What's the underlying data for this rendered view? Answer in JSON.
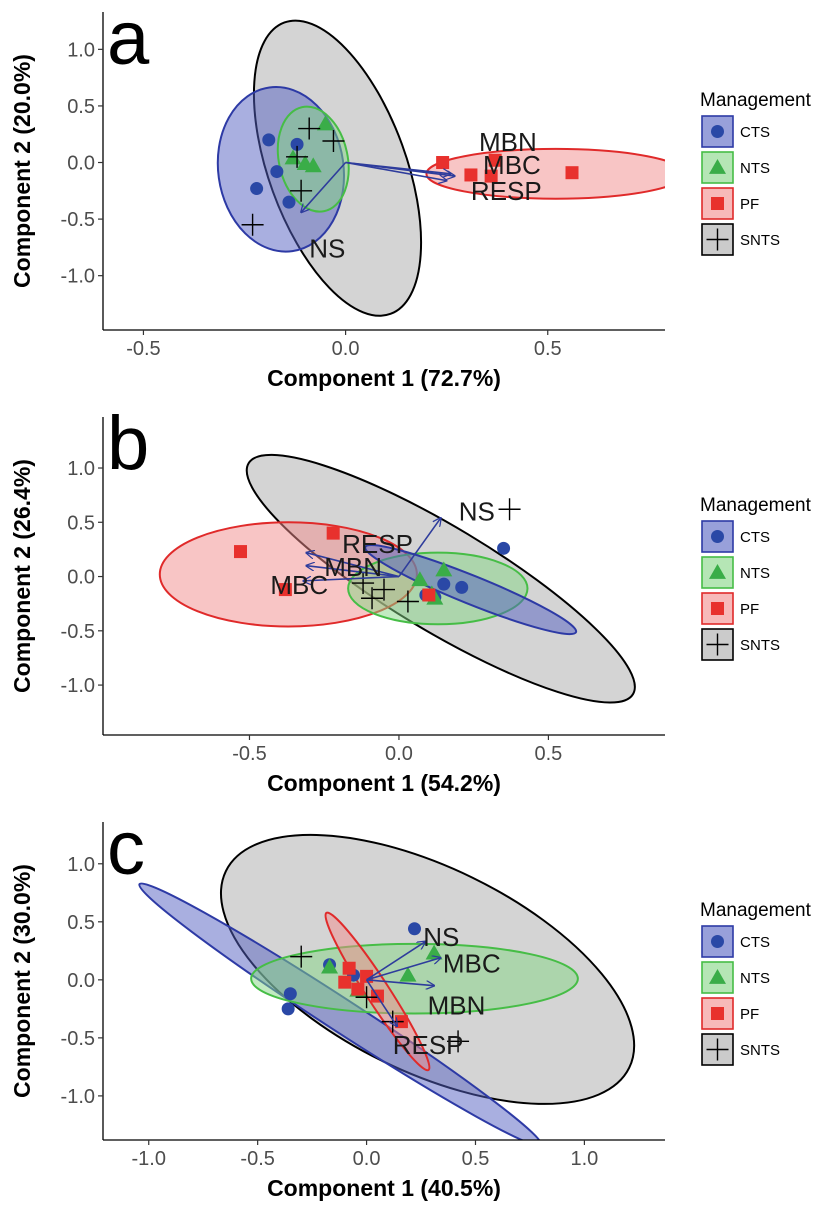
{
  "legend": {
    "title": "Management",
    "entries": [
      {
        "key": "CTS",
        "label": "CTS",
        "fill": "#5360c2",
        "stroke": "#2d3aa5",
        "point": "#2a48a6",
        "shape": "circle"
      },
      {
        "key": "NTS",
        "label": "NTS",
        "fill": "#84d684",
        "stroke": "#46bd46",
        "point": "#3aad48",
        "shape": "triangle"
      },
      {
        "key": "PF",
        "label": "PF",
        "fill": "#f28b8b",
        "stroke": "#e02a2a",
        "point": "#e8312d",
        "shape": "square"
      },
      {
        "key": "SNTS",
        "label": "SNTS",
        "fill": "#a9a9a9",
        "stroke": "#000000",
        "point": "#000000",
        "shape": "cross"
      }
    ]
  },
  "colors": {
    "arrow": "#2e3c9c",
    "axis": "#000000",
    "tick_text": "#4d4d4d"
  },
  "chart_data": [
    {
      "type": "scatter",
      "panel_label": "a",
      "xlabel": "Component 1 (72.7%)",
      "ylabel": "Component 2 (20.0%)",
      "xlim": [
        -0.6,
        0.79
      ],
      "ylim": [
        -1.48,
        1.33
      ],
      "xticks": [
        -0.5,
        0.0,
        0.5
      ],
      "xtick_labels": [
        "-0.5",
        "0.0",
        "0.5"
      ],
      "yticks": [
        -1.0,
        -0.5,
        0.0,
        0.5,
        1.0
      ],
      "ytick_labels": [
        "-1.0",
        "-0.5",
        "0.0",
        "0.5",
        "1.0"
      ],
      "ellipses": [
        {
          "group": "SNTS",
          "cx": -0.02,
          "cy": -0.05,
          "rx": 0.17,
          "ry": 1.37,
          "angle": 20
        },
        {
          "group": "CTS",
          "cx": -0.16,
          "cy": -0.06,
          "rx": 0.155,
          "ry": 0.73,
          "angle": 8
        },
        {
          "group": "PF",
          "cx": 0.52,
          "cy": -0.1,
          "rx": 0.32,
          "ry": 0.22,
          "angle": 0
        },
        {
          "group": "NTS",
          "cx": -0.08,
          "cy": 0.03,
          "rx": 0.085,
          "ry": 0.47,
          "angle": 12
        }
      ],
      "points": [
        {
          "group": "CTS",
          "x": -0.19,
          "y": 0.2
        },
        {
          "group": "CTS",
          "x": -0.12,
          "y": 0.16
        },
        {
          "group": "CTS",
          "x": -0.17,
          "y": -0.08
        },
        {
          "group": "CTS",
          "x": -0.22,
          "y": -0.23
        },
        {
          "group": "CTS",
          "x": -0.14,
          "y": -0.35
        },
        {
          "group": "NTS",
          "x": -0.05,
          "y": 0.34
        },
        {
          "group": "NTS",
          "x": -0.13,
          "y": 0.04
        },
        {
          "group": "NTS",
          "x": -0.1,
          "y": -0.01
        },
        {
          "group": "NTS",
          "x": -0.08,
          "y": -0.03
        },
        {
          "group": "PF",
          "x": 0.24,
          "y": 0.0
        },
        {
          "group": "PF",
          "x": 0.31,
          "y": -0.11
        },
        {
          "group": "PF",
          "x": 0.37,
          "y": 0.02
        },
        {
          "group": "PF",
          "x": 0.36,
          "y": -0.12
        },
        {
          "group": "PF",
          "x": 0.56,
          "y": -0.09
        },
        {
          "group": "SNTS",
          "x": -0.09,
          "y": 0.3
        },
        {
          "group": "SNTS",
          "x": -0.12,
          "y": 0.05
        },
        {
          "group": "SNTS",
          "x": -0.03,
          "y": 0.19
        },
        {
          "group": "SNTS",
          "x": -0.11,
          "y": -0.25
        },
        {
          "group": "SNTS",
          "x": -0.23,
          "y": -0.55
        }
      ],
      "arrows": [
        {
          "label": "MBN",
          "x": 0.26,
          "y": -0.1,
          "label_x": 0.33,
          "label_y": 0.18
        },
        {
          "label": "MBC",
          "x": 0.27,
          "y": -0.12,
          "label_x": 0.34,
          "label_y": -0.02
        },
        {
          "label": "RESP",
          "x": 0.25,
          "y": -0.16,
          "label_x": 0.31,
          "label_y": -0.25
        },
        {
          "label": "NS",
          "x": -0.11,
          "y": -0.44,
          "label_x": -0.09,
          "label_y": -0.76
        }
      ]
    },
    {
      "type": "scatter",
      "panel_label": "b",
      "xlabel": "Component 1 (54.2%)",
      "ylabel": "Component 2 (26.4%)",
      "xlim": [
        -0.99,
        0.89
      ],
      "ylim": [
        -1.46,
        1.47
      ],
      "xticks": [
        -0.5,
        0.0,
        0.5
      ],
      "xtick_labels": [
        "-0.5",
        "0.0",
        "0.5"
      ],
      "yticks": [
        -1.0,
        -0.5,
        0.0,
        0.5,
        1.0
      ],
      "ytick_labels": [
        "-1.0",
        "-0.5",
        "0.0",
        "0.5",
        "1.0"
      ],
      "ellipses": [
        {
          "group": "SNTS",
          "cx": 0.14,
          "cy": -0.02,
          "rx": 0.75,
          "ry": 0.48,
          "angle": -31
        },
        {
          "group": "PF",
          "cx": -0.37,
          "cy": 0.02,
          "rx": 0.43,
          "ry": 0.48,
          "angle": 0
        },
        {
          "group": "NTS",
          "cx": 0.13,
          "cy": -0.11,
          "rx": 0.3,
          "ry": 0.33,
          "angle": 0
        },
        {
          "group": "CTS",
          "cx": 0.24,
          "cy": -0.12,
          "rx": 0.38,
          "ry": 0.13,
          "angle": -22
        }
      ],
      "points": [
        {
          "group": "CTS",
          "x": 0.35,
          "y": 0.26
        },
        {
          "group": "CTS",
          "x": 0.15,
          "y": -0.07
        },
        {
          "group": "CTS",
          "x": 0.21,
          "y": -0.1
        },
        {
          "group": "CTS",
          "x": 0.09,
          "y": -0.17
        },
        {
          "group": "CTS",
          "x": 0.12,
          "y": -0.19
        },
        {
          "group": "NTS",
          "x": 0.07,
          "y": -0.03
        },
        {
          "group": "NTS",
          "x": 0.11,
          "y": -0.16
        },
        {
          "group": "NTS",
          "x": 0.12,
          "y": -0.2
        },
        {
          "group": "NTS",
          "x": 0.15,
          "y": 0.06
        },
        {
          "group": "PF",
          "x": -0.53,
          "y": 0.23
        },
        {
          "group": "PF",
          "x": -0.22,
          "y": 0.4
        },
        {
          "group": "PF",
          "x": -0.38,
          "y": -0.12
        },
        {
          "group": "PF",
          "x": 0.1,
          "y": -0.17
        },
        {
          "group": "SNTS",
          "x": 0.37,
          "y": 0.62
        },
        {
          "group": "SNTS",
          "x": -0.12,
          "y": -0.06
        },
        {
          "group": "SNTS",
          "x": -0.09,
          "y": -0.2
        },
        {
          "group": "SNTS",
          "x": 0.03,
          "y": -0.23
        },
        {
          "group": "SNTS",
          "x": -0.05,
          "y": -0.12
        }
      ],
      "arrows": [
        {
          "label": "NS",
          "x": 0.14,
          "y": 0.54,
          "label_x": 0.2,
          "label_y": 0.6
        },
        {
          "label": "RESP",
          "x": -0.31,
          "y": 0.22,
          "label_x": -0.19,
          "label_y": 0.3
        },
        {
          "label": "MBN",
          "x": -0.31,
          "y": 0.1,
          "label_x": -0.25,
          "label_y": 0.09
        },
        {
          "label": "MBC",
          "x": -0.32,
          "y": -0.04,
          "label_x": -0.43,
          "label_y": -0.08
        }
      ]
    },
    {
      "type": "scatter",
      "panel_label": "c",
      "xlabel": "Component 1 (40.5%)",
      "ylabel": "Component 2 (30.0%)",
      "xlim": [
        -1.21,
        1.37
      ],
      "ylim": [
        -1.38,
        1.36
      ],
      "xticks": [
        -1.0,
        -0.5,
        0.0,
        0.5,
        1.0
      ],
      "xtick_labels": [
        "-1.0",
        "-0.5",
        "0.0",
        "0.5",
        "1.0"
      ],
      "yticks": [
        -1.0,
        -0.5,
        0.0,
        0.5,
        1.0
      ],
      "ytick_labels": [
        "-1.0",
        "-0.5",
        "0.0",
        "0.5",
        "1.0"
      ],
      "ellipses": [
        {
          "group": "SNTS",
          "cx": 0.28,
          "cy": 0.09,
          "rx": 1.03,
          "ry": 0.88,
          "angle": -26
        },
        {
          "group": "CTS",
          "cx": -0.12,
          "cy": -0.3,
          "rx": 1.1,
          "ry": 0.14,
          "angle": -33
        },
        {
          "group": "NTS",
          "cx": 0.22,
          "cy": 0.01,
          "rx": 0.75,
          "ry": 0.3,
          "angle": 0
        },
        {
          "group": "PF",
          "cx": 0.05,
          "cy": -0.1,
          "rx": 0.43,
          "ry": 0.1,
          "angle": -57
        }
      ],
      "points": [
        {
          "group": "CTS",
          "x": 0.22,
          "y": 0.44
        },
        {
          "group": "CTS",
          "x": -0.17,
          "y": 0.13
        },
        {
          "group": "CTS",
          "x": -0.06,
          "y": 0.04
        },
        {
          "group": "CTS",
          "x": -0.35,
          "y": -0.12
        },
        {
          "group": "CTS",
          "x": -0.36,
          "y": -0.25
        },
        {
          "group": "NTS",
          "x": 0.31,
          "y": 0.23
        },
        {
          "group": "NTS",
          "x": 0.19,
          "y": 0.04
        },
        {
          "group": "NTS",
          "x": -0.17,
          "y": 0.11
        },
        {
          "group": "NTS",
          "x": -0.04,
          "y": -0.09
        },
        {
          "group": "PF",
          "x": -0.08,
          "y": 0.1
        },
        {
          "group": "PF",
          "x": -0.1,
          "y": -0.02
        },
        {
          "group": "PF",
          "x": 0.0,
          "y": 0.03
        },
        {
          "group": "PF",
          "x": 0.05,
          "y": -0.14
        },
        {
          "group": "PF",
          "x": 0.16,
          "y": -0.36
        },
        {
          "group": "PF",
          "x": -0.04,
          "y": -0.08
        },
        {
          "group": "SNTS",
          "x": -0.3,
          "y": 0.2
        },
        {
          "group": "SNTS",
          "x": 0.0,
          "y": -0.15
        },
        {
          "group": "SNTS",
          "x": 0.42,
          "y": -0.53
        },
        {
          "group": "SNTS",
          "x": 0.12,
          "y": -0.36
        }
      ],
      "arrows": [
        {
          "label": "NS",
          "x": 0.27,
          "y": 0.33,
          "label_x": 0.26,
          "label_y": 0.37
        },
        {
          "label": "MBC",
          "x": 0.34,
          "y": 0.19,
          "label_x": 0.35,
          "label_y": 0.14
        },
        {
          "label": "MBN",
          "x": 0.31,
          "y": -0.05,
          "label_x": 0.28,
          "label_y": -0.22
        },
        {
          "label": "RESP",
          "x": 0.14,
          "y": -0.4,
          "label_x": 0.12,
          "label_y": -0.56
        }
      ]
    }
  ]
}
